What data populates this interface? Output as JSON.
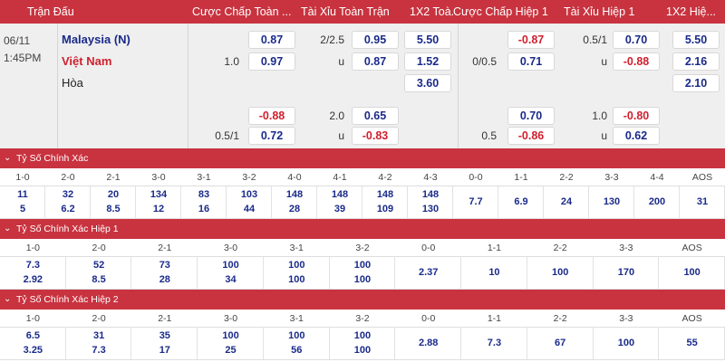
{
  "header": {
    "match": "Trận Đấu",
    "ah_full": "Cược Chấp Toàn ...",
    "ou_full": "Tài Xỉu Toàn Trận",
    "x12_full": "1X2 Toà...",
    "ah_half": "Cược Chấp Hiệp 1",
    "ou_half": "Tài Xỉu Hiệp 1",
    "x12_half": "1X2 Hiệ..."
  },
  "match": {
    "date": "06/11",
    "time": "1:45PM",
    "home": "Malaysia (N)",
    "away": "Việt Nam",
    "draw": "Hòa",
    "home_color": "#1a2a8a",
    "away_color": "#d0202e",
    "ah_full": {
      "row1_odd": "0.87",
      "row2_hcap": "1.0",
      "row2_odd": "0.97",
      "row3_odd": "-0.88",
      "row4_hcap": "0.5/1",
      "row4_odd": "0.72"
    },
    "ou_full": {
      "row1_hcap": "2/2.5",
      "row1_odd": "0.95",
      "row2_hcap": "u",
      "row2_odd": "0.87",
      "row3_hcap": "2.0",
      "row3_odd": "0.65",
      "row4_hcap": "u",
      "row4_odd": "-0.83"
    },
    "x12_full": {
      "home": "5.50",
      "away": "1.52",
      "draw": "3.60"
    },
    "ah_half": {
      "row1_odd": "-0.87",
      "row2_hcap": "0/0.5",
      "row2_odd": "0.71",
      "row3_odd": "0.70",
      "row4_hcap": "0.5",
      "row4_odd": "-0.86"
    },
    "ou_half": {
      "row1_hcap": "0.5/1",
      "row1_odd": "0.70",
      "row2_hcap": "u",
      "row2_odd": "-0.88",
      "row3_hcap": "1.0",
      "row3_odd": "-0.80",
      "row4_hcap": "u",
      "row4_odd": "0.62"
    },
    "x12_half": {
      "home": "5.50",
      "away": "2.16",
      "draw": "2.10"
    }
  },
  "sections": [
    {
      "title": "Tỷ Số Chính Xác",
      "headers": [
        "1-0",
        "2-0",
        "2-1",
        "3-0",
        "3-1",
        "3-2",
        "4-0",
        "4-1",
        "4-2",
        "4-3",
        "0-0",
        "1-1",
        "2-2",
        "3-3",
        "4-4",
        "AOS"
      ],
      "row1": [
        "11",
        "32",
        "20",
        "134",
        "83",
        "103",
        "148",
        "148",
        "148",
        "148",
        "7.7",
        "6.9",
        "24",
        "130",
        "200",
        "31"
      ],
      "row2": [
        "5",
        "6.2",
        "8.5",
        "12",
        "16",
        "44",
        "28",
        "39",
        "109",
        "130",
        "",
        "",
        "",
        "",
        "",
        ""
      ]
    },
    {
      "title": "Tỷ Số Chính Xác Hiệp 1",
      "headers": [
        "1-0",
        "2-0",
        "2-1",
        "3-0",
        "3-1",
        "3-2",
        "0-0",
        "1-1",
        "2-2",
        "3-3",
        "AOS"
      ],
      "row1": [
        "7.3",
        "52",
        "73",
        "100",
        "100",
        "100",
        "2.37",
        "10",
        "100",
        "170",
        "100"
      ],
      "row2": [
        "2.92",
        "8.5",
        "28",
        "34",
        "100",
        "100",
        "",
        "",
        "",
        "",
        ""
      ]
    },
    {
      "title": "Tỷ Số Chính Xác Hiệp 2",
      "headers": [
        "1-0",
        "2-0",
        "2-1",
        "3-0",
        "3-1",
        "3-2",
        "0-0",
        "1-1",
        "2-2",
        "3-3",
        "AOS"
      ],
      "row1": [
        "6.5",
        "31",
        "35",
        "100",
        "100",
        "100",
        "2.88",
        "7.3",
        "67",
        "100",
        "55"
      ],
      "row2": [
        "3.25",
        "7.3",
        "17",
        "25",
        "56",
        "100",
        "",
        "",
        "",
        "",
        ""
      ]
    }
  ]
}
